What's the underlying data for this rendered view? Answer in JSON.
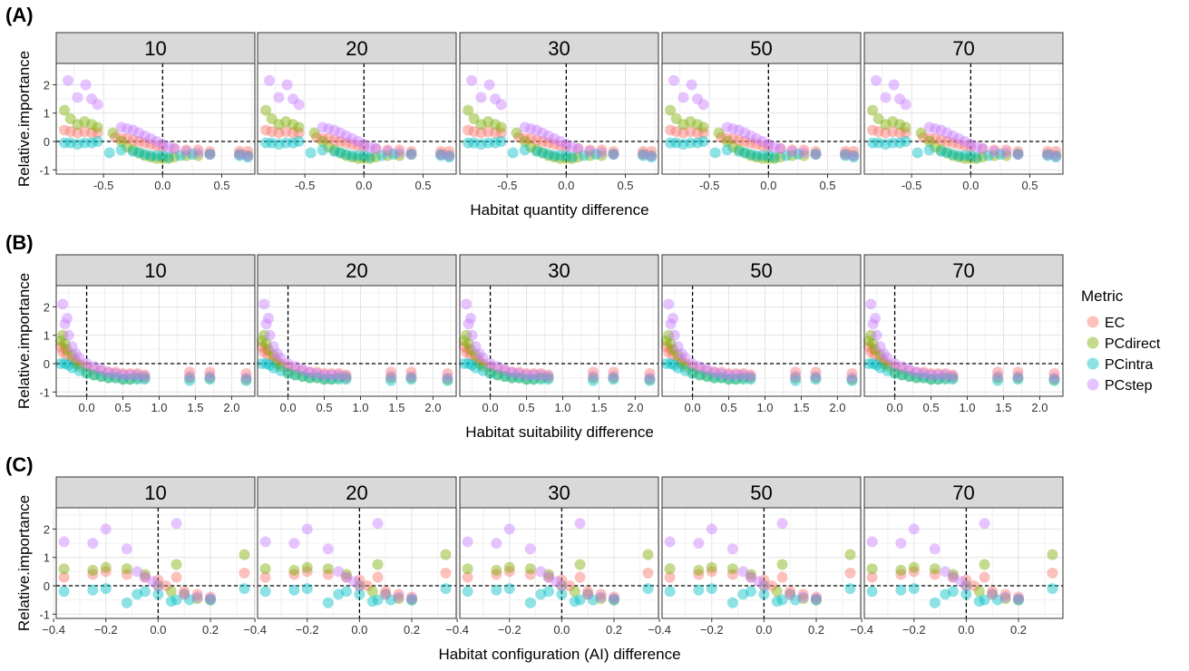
{
  "chart_data": [
    {
      "label": "(A)",
      "type": "scatter",
      "xlabel": "Habitat quantity difference",
      "ylabel": "Relative.importance",
      "facets": [
        "10",
        "20",
        "30",
        "50",
        "70"
      ],
      "xlim": [
        -0.9,
        0.78
      ],
      "xticks": [
        -0.5,
        0.0,
        0.5
      ],
      "xtick_labels": [
        "-0.5",
        "0.0",
        "0.5"
      ],
      "ylim": [
        -1.15,
        2.75
      ],
      "yticks": [
        -1,
        0,
        1,
        2
      ],
      "ytick_labels": [
        "-1",
        "0",
        "1",
        "2"
      ]
    },
    {
      "label": "(B)",
      "type": "scatter",
      "xlabel": "Habitat suitability difference",
      "ylabel": "Relative.importance",
      "facets": [
        "10",
        "20",
        "30",
        "50",
        "70"
      ],
      "xlim": [
        -0.42,
        2.32
      ],
      "xticks": [
        0.0,
        0.5,
        1.0,
        1.5,
        2.0
      ],
      "xtick_labels": [
        "0.0",
        "0.5",
        "1.0",
        "1.5",
        "2.0"
      ],
      "ylim": [
        -1.15,
        2.75
      ],
      "yticks": [
        -1,
        0,
        1,
        2
      ],
      "ytick_labels": [
        "-1",
        "0",
        "1",
        "2"
      ]
    },
    {
      "label": "(C)",
      "type": "scatter",
      "xlabel": "Habitat configuration (AI) difference",
      "ylabel": "Relative.importance",
      "facets": [
        "10",
        "20",
        "30",
        "50",
        "70"
      ],
      "xlim": [
        -0.39,
        0.37
      ],
      "xticks": [
        -0.4,
        -0.2,
        0.0,
        0.2
      ],
      "xtick_labels": [
        "−0.4",
        "−0.2",
        "0.0",
        "0.2"
      ],
      "ylim": [
        -1.15,
        2.75
      ],
      "yticks": [
        -1,
        0,
        1,
        2
      ],
      "ytick_labels": [
        "-1",
        "0",
        "1",
        "2"
      ]
    }
  ],
  "legend": {
    "title": "Metric",
    "position": "right",
    "items": [
      {
        "name": "EC",
        "color": "#F8766D"
      },
      {
        "name": "PCdirect",
        "color": "#7CAE00"
      },
      {
        "name": "PCintra",
        "color": "#00BFC4"
      },
      {
        "name": "PCstep",
        "color": "#C77CFF"
      }
    ]
  },
  "series": {
    "A": {
      "EC": [
        [
          -0.83,
          0.4
        ],
        [
          -0.78,
          0.35
        ],
        [
          -0.72,
          0.3
        ],
        [
          -0.66,
          0.35
        ],
        [
          -0.6,
          0.3
        ],
        [
          -0.55,
          0.3
        ],
        [
          -0.4,
          0.15
        ],
        [
          -0.35,
          0.1
        ],
        [
          -0.3,
          0.1
        ],
        [
          -0.25,
          0.05
        ],
        [
          -0.2,
          0.0
        ],
        [
          -0.15,
          -0.05
        ],
        [
          -0.1,
          -0.1
        ],
        [
          -0.05,
          -0.15
        ],
        [
          0.0,
          -0.2
        ],
        [
          0.1,
          -0.25
        ],
        [
          0.2,
          -0.3
        ],
        [
          0.3,
          -0.3
        ],
        [
          0.4,
          -0.35
        ],
        [
          0.65,
          -0.35
        ],
        [
          0.72,
          -0.35
        ]
      ],
      "PCdirect": [
        [
          -0.83,
          1.1
        ],
        [
          -0.78,
          0.8
        ],
        [
          -0.72,
          0.6
        ],
        [
          -0.66,
          0.7
        ],
        [
          -0.6,
          0.6
        ],
        [
          -0.55,
          0.5
        ],
        [
          -0.42,
          0.3
        ],
        [
          -0.35,
          0.0
        ],
        [
          -0.3,
          -0.2
        ],
        [
          -0.25,
          -0.3
        ],
        [
          -0.2,
          -0.4
        ],
        [
          -0.15,
          -0.5
        ],
        [
          -0.1,
          -0.55
        ],
        [
          -0.05,
          -0.6
        ],
        [
          0.0,
          -0.6
        ],
        [
          0.05,
          -0.6
        ],
        [
          0.1,
          -0.55
        ],
        [
          0.2,
          -0.5
        ],
        [
          0.3,
          -0.5
        ],
        [
          0.4,
          -0.45
        ],
        [
          0.65,
          -0.45
        ],
        [
          0.72,
          -0.5
        ]
      ],
      "PCintra": [
        [
          -0.83,
          -0.05
        ],
        [
          -0.78,
          -0.05
        ],
        [
          -0.72,
          -0.1
        ],
        [
          -0.66,
          -0.05
        ],
        [
          -0.6,
          -0.05
        ],
        [
          -0.55,
          0.0
        ],
        [
          -0.45,
          -0.4
        ],
        [
          -0.35,
          -0.3
        ],
        [
          -0.25,
          -0.35
        ],
        [
          -0.2,
          -0.4
        ],
        [
          -0.15,
          -0.45
        ],
        [
          -0.1,
          -0.5
        ],
        [
          -0.05,
          -0.5
        ],
        [
          0.0,
          -0.5
        ],
        [
          0.05,
          -0.55
        ],
        [
          0.15,
          -0.5
        ],
        [
          0.25,
          -0.45
        ],
        [
          0.4,
          -0.45
        ],
        [
          0.65,
          -0.5
        ],
        [
          0.72,
          -0.55
        ]
      ],
      "PCstep": [
        [
          -0.8,
          2.15
        ],
        [
          -0.72,
          1.55
        ],
        [
          -0.65,
          2.0
        ],
        [
          -0.6,
          1.5
        ],
        [
          -0.55,
          1.3
        ],
        [
          -0.35,
          0.5
        ],
        [
          -0.3,
          0.45
        ],
        [
          -0.25,
          0.4
        ],
        [
          -0.2,
          0.3
        ],
        [
          -0.15,
          0.2
        ],
        [
          -0.1,
          0.1
        ],
        [
          -0.05,
          0.0
        ],
        [
          0.0,
          -0.1
        ],
        [
          0.05,
          -0.2
        ],
        [
          0.1,
          -0.25
        ],
        [
          0.2,
          -0.35
        ],
        [
          0.3,
          -0.4
        ],
        [
          0.4,
          -0.45
        ],
        [
          0.65,
          -0.45
        ],
        [
          0.72,
          -0.5
        ]
      ]
    },
    "B": {
      "EC": [
        [
          -0.36,
          0.6
        ],
        [
          -0.33,
          0.4
        ],
        [
          -0.3,
          0.5
        ],
        [
          -0.27,
          0.3
        ],
        [
          -0.2,
          0.2
        ],
        [
          -0.15,
          0.1
        ],
        [
          -0.1,
          0.0
        ],
        [
          0.0,
          -0.1
        ],
        [
          0.1,
          -0.2
        ],
        [
          0.2,
          -0.25
        ],
        [
          0.3,
          -0.3
        ],
        [
          0.4,
          -0.3
        ],
        [
          0.5,
          -0.35
        ],
        [
          0.6,
          -0.35
        ],
        [
          0.7,
          -0.35
        ],
        [
          0.8,
          -0.4
        ],
        [
          1.42,
          -0.3
        ],
        [
          1.7,
          -0.3
        ],
        [
          2.2,
          -0.35
        ]
      ],
      "PCdirect": [
        [
          -0.36,
          0.8
        ],
        [
          -0.33,
          1.0
        ],
        [
          -0.3,
          0.7
        ],
        [
          -0.27,
          0.5
        ],
        [
          -0.2,
          0.3
        ],
        [
          -0.15,
          0.0
        ],
        [
          -0.1,
          -0.1
        ],
        [
          0.0,
          -0.3
        ],
        [
          0.1,
          -0.4
        ],
        [
          0.2,
          -0.45
        ],
        [
          0.3,
          -0.5
        ],
        [
          0.4,
          -0.5
        ],
        [
          0.5,
          -0.55
        ],
        [
          0.6,
          -0.55
        ],
        [
          0.7,
          -0.5
        ],
        [
          0.8,
          -0.5
        ],
        [
          1.42,
          -0.5
        ],
        [
          1.7,
          -0.5
        ],
        [
          2.2,
          -0.55
        ]
      ],
      "PCintra": [
        [
          -0.36,
          0.0
        ],
        [
          -0.3,
          0.0
        ],
        [
          -0.25,
          -0.05
        ],
        [
          -0.2,
          -0.15
        ],
        [
          -0.1,
          -0.25
        ],
        [
          0.0,
          -0.35
        ],
        [
          0.1,
          -0.4
        ],
        [
          0.2,
          -0.45
        ],
        [
          0.3,
          -0.5
        ],
        [
          0.4,
          -0.5
        ],
        [
          0.5,
          -0.55
        ],
        [
          0.6,
          -0.55
        ],
        [
          0.7,
          -0.55
        ],
        [
          0.8,
          -0.55
        ],
        [
          1.42,
          -0.6
        ],
        [
          1.7,
          -0.55
        ],
        [
          2.2,
          -0.6
        ]
      ],
      "PCstep": [
        [
          -0.33,
          2.1
        ],
        [
          -0.3,
          1.4
        ],
        [
          -0.27,
          1.6
        ],
        [
          -0.25,
          1.0
        ],
        [
          -0.2,
          0.6
        ],
        [
          -0.15,
          0.35
        ],
        [
          -0.1,
          0.2
        ],
        [
          0.0,
          0.0
        ],
        [
          0.1,
          -0.1
        ],
        [
          0.2,
          -0.2
        ],
        [
          0.3,
          -0.3
        ],
        [
          0.4,
          -0.35
        ],
        [
          0.5,
          -0.4
        ],
        [
          0.6,
          -0.4
        ],
        [
          0.7,
          -0.4
        ],
        [
          0.8,
          -0.45
        ],
        [
          1.42,
          -0.45
        ],
        [
          1.7,
          -0.45
        ],
        [
          2.2,
          -0.5
        ]
      ]
    },
    "C": {
      "EC": [
        [
          -0.36,
          0.3
        ],
        [
          -0.25,
          0.4
        ],
        [
          -0.2,
          0.5
        ],
        [
          -0.12,
          0.4
        ],
        [
          -0.05,
          0.3
        ],
        [
          0.0,
          0.2
        ],
        [
          0.03,
          0.0
        ],
        [
          0.07,
          0.3
        ],
        [
          0.1,
          -0.2
        ],
        [
          0.15,
          -0.3
        ],
        [
          0.2,
          -0.4
        ],
        [
          0.33,
          0.45
        ]
      ],
      "PCdirect": [
        [
          -0.36,
          0.6
        ],
        [
          -0.25,
          0.55
        ],
        [
          -0.2,
          0.65
        ],
        [
          -0.12,
          0.6
        ],
        [
          -0.05,
          0.4
        ],
        [
          0.0,
          0.0
        ],
        [
          0.05,
          -0.2
        ],
        [
          0.07,
          0.75
        ],
        [
          0.1,
          -0.3
        ],
        [
          0.15,
          -0.45
        ],
        [
          0.2,
          -0.5
        ],
        [
          0.33,
          1.1
        ]
      ],
      "PCintra": [
        [
          -0.36,
          -0.2
        ],
        [
          -0.25,
          -0.15
        ],
        [
          -0.2,
          -0.1
        ],
        [
          -0.12,
          -0.6
        ],
        [
          -0.08,
          -0.3
        ],
        [
          -0.05,
          -0.2
        ],
        [
          0.0,
          -0.3
        ],
        [
          0.05,
          -0.55
        ],
        [
          0.07,
          -0.5
        ],
        [
          0.12,
          -0.5
        ],
        [
          0.2,
          -0.5
        ],
        [
          0.33,
          -0.1
        ]
      ],
      "PCstep": [
        [
          -0.36,
          1.55
        ],
        [
          -0.25,
          1.5
        ],
        [
          -0.2,
          2.0
        ],
        [
          -0.12,
          1.3
        ],
        [
          -0.08,
          0.5
        ],
        [
          -0.05,
          0.3
        ],
        [
          -0.02,
          0.15
        ],
        [
          0.0,
          0.0
        ],
        [
          0.07,
          2.2
        ],
        [
          0.1,
          -0.3
        ],
        [
          0.15,
          -0.4
        ],
        [
          0.2,
          -0.45
        ]
      ]
    }
  }
}
